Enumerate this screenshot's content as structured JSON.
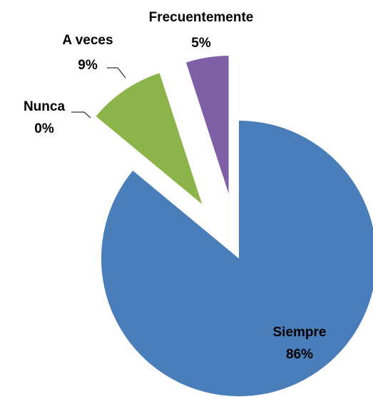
{
  "chart_data": {
    "type": "pie",
    "categories": [
      "Siempre",
      "Nunca",
      "A veces",
      "Frecuentemente"
    ],
    "values": [
      86,
      0,
      9,
      5
    ],
    "value_labels": [
      "86%",
      "0%",
      "9%",
      "5%"
    ],
    "colors": [
      "#4a7ebb",
      "#c0504d",
      "#8db44a",
      "#7f5fa6"
    ]
  }
}
